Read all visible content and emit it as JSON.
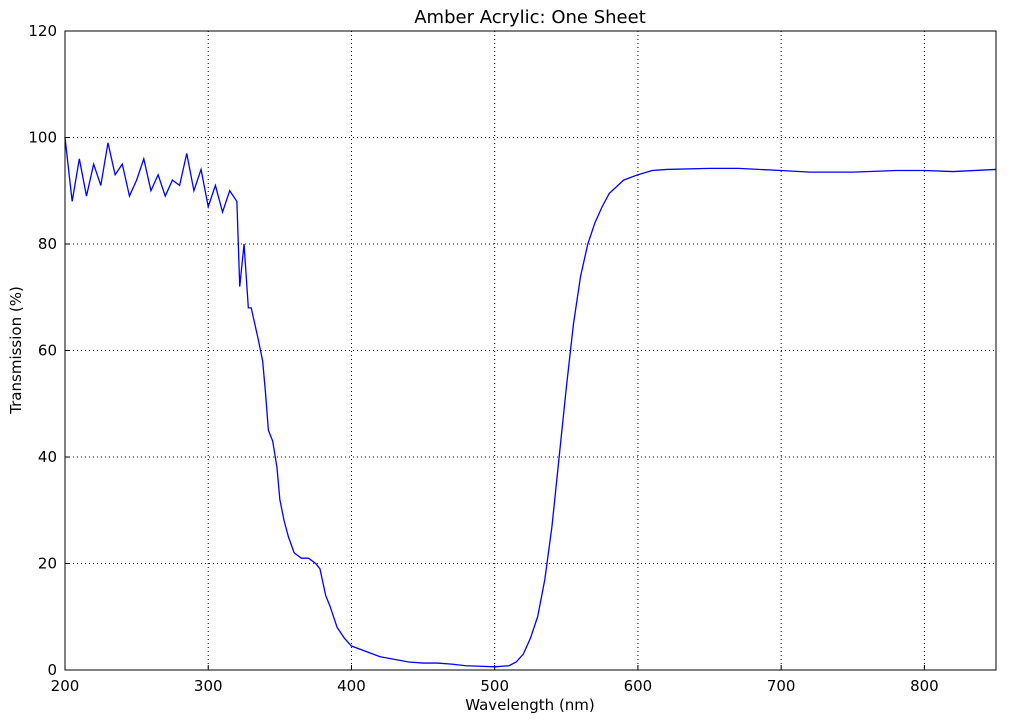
{
  "chart_data": {
    "type": "line",
    "title": "Amber Acrylic: One Sheet",
    "x_label": "Wavelength (nm)",
    "y_label": "Transmission (%)",
    "x": [
      200,
      205,
      210,
      215,
      220,
      225,
      230,
      235,
      240,
      245,
      250,
      255,
      260,
      265,
      270,
      275,
      280,
      285,
      290,
      295,
      300,
      305,
      310,
      315,
      320,
      322,
      325,
      328,
      330,
      335,
      338,
      340,
      342,
      345,
      348,
      350,
      353,
      356,
      360,
      365,
      370,
      375,
      378,
      382,
      385,
      390,
      395,
      400,
      410,
      420,
      430,
      440,
      450,
      460,
      470,
      480,
      490,
      500,
      510,
      515,
      520,
      525,
      530,
      535,
      540,
      545,
      550,
      555,
      560,
      565,
      570,
      575,
      580,
      590,
      600,
      610,
      620,
      650,
      670,
      700,
      720,
      750,
      780,
      800,
      820,
      850
    ],
    "series": [
      {
        "name": "Transmission",
        "color": "#0000ff",
        "values": [
          100,
          88,
          96,
          89,
          95,
          91,
          99,
          93,
          95,
          89,
          92,
          96,
          90,
          93,
          89,
          92,
          91,
          97,
          90,
          94,
          87,
          91,
          86,
          90,
          88,
          72,
          80,
          68,
          68,
          62,
          58,
          52,
          45,
          43,
          38,
          32,
          28,
          25,
          22,
          21,
          21,
          20,
          19,
          14,
          12,
          8,
          6,
          4.5,
          3.5,
          2.5,
          2,
          1.5,
          1.3,
          1.3,
          1.1,
          0.8,
          0.7,
          0.6,
          0.8,
          1.5,
          3,
          6,
          10,
          17,
          27,
          40,
          53,
          65,
          74,
          80,
          84,
          87,
          89.5,
          92,
          93,
          93.8,
          94,
          94.2,
          94.2,
          93.8,
          93.5,
          93.5,
          93.8,
          93.8,
          93.6,
          94
        ]
      }
    ],
    "xlim": [
      200,
      850
    ],
    "xticks": [
      200,
      300,
      400,
      500,
      600,
      700,
      800
    ],
    "ylim": [
      0,
      120
    ],
    "yticks": [
      0,
      20,
      40,
      60,
      80,
      100,
      120
    ],
    "grid": true
  }
}
